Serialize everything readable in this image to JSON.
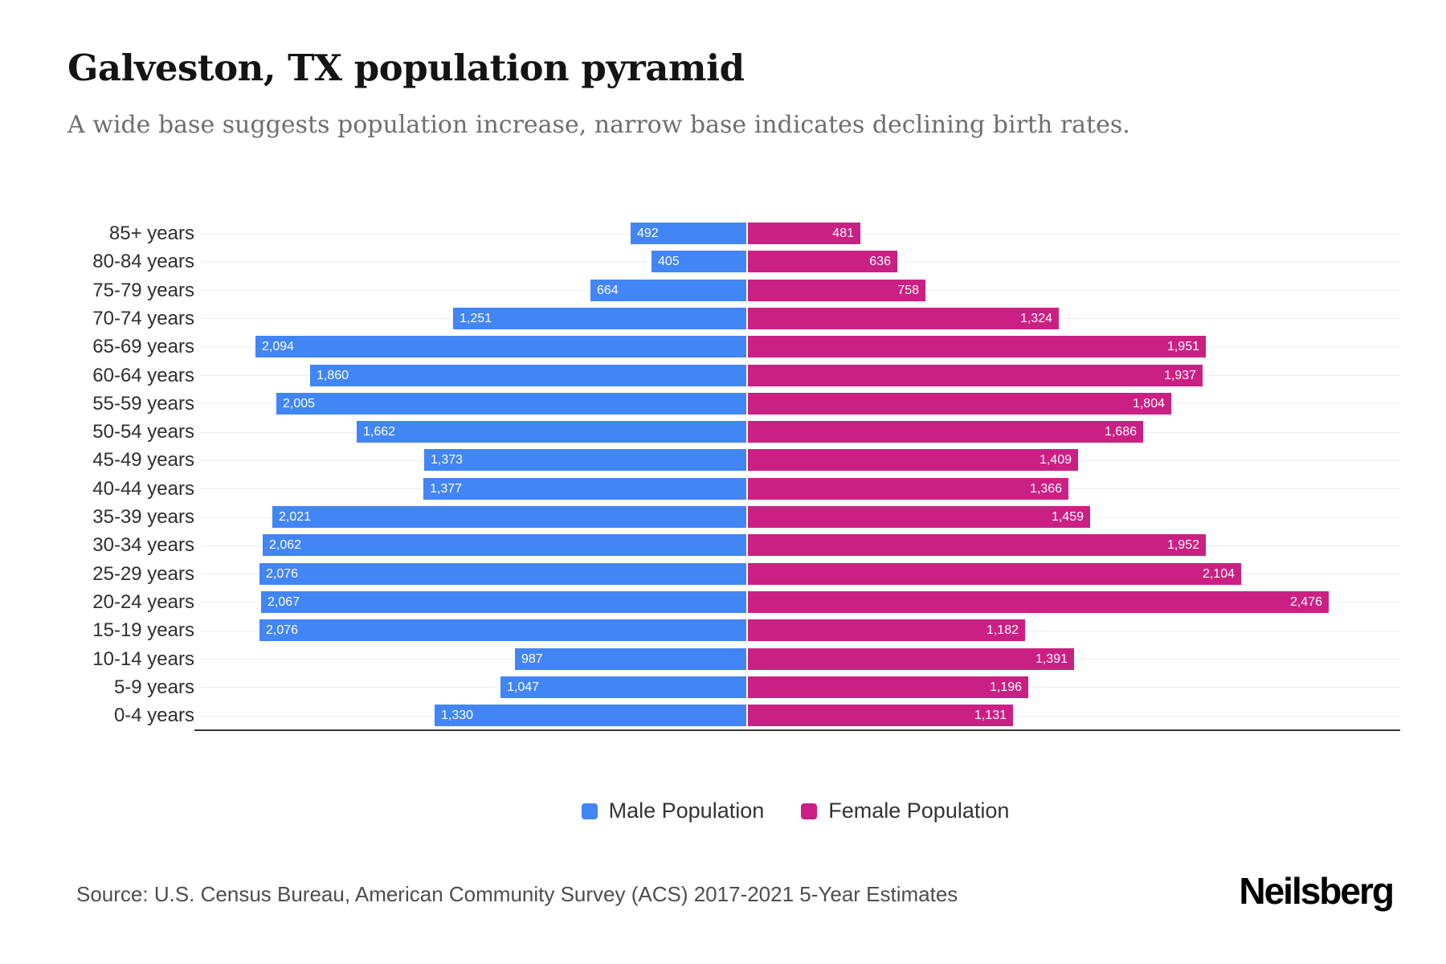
{
  "header": {
    "title": "Galveston, TX population pyramid",
    "subtitle": "A wide base suggests population increase, narrow base indicates declining birth rates."
  },
  "chart_data": {
    "type": "bar",
    "variant": "population-pyramid",
    "orientation": "horizontal",
    "categories": [
      "85+ years",
      "80-84 years",
      "75-79 years",
      "70-74 years",
      "65-69 years",
      "60-64 years",
      "55-59 years",
      "50-54 years",
      "45-49 years",
      "40-44 years",
      "35-39 years",
      "30-34 years",
      "25-29 years",
      "20-24 years",
      "15-19 years",
      "10-14 years",
      "5-9 years",
      "0-4 years"
    ],
    "series": [
      {
        "name": "Male Population",
        "side": "left",
        "color": "#4285F4",
        "values": [
          492,
          405,
          664,
          1251,
          2094,
          1860,
          2005,
          1662,
          1373,
          1377,
          2021,
          2062,
          2076,
          2067,
          2076,
          987,
          1047,
          1330
        ]
      },
      {
        "name": "Female Population",
        "side": "right",
        "color": "#CB2083",
        "values": [
          481,
          636,
          758,
          1324,
          1951,
          1937,
          1804,
          1686,
          1409,
          1366,
          1459,
          1952,
          2104,
          2476,
          1182,
          1391,
          1196,
          1131
        ]
      }
    ],
    "value_labels": "inside-outer-end",
    "xlim_each_side": [
      0,
      2600
    ],
    "grid": true,
    "legend_position": "bottom"
  },
  "footer": {
    "source": "Source: U.S. Census Bureau, American Community Survey (ACS) 2017-2021 5-Year Estimates",
    "brand": "Neilsberg"
  },
  "colors": {
    "male": "#4285F4",
    "female": "#CB2083",
    "gridline": "#ececec",
    "baseline": "#333333",
    "subtitle_text": "#6e6e6e"
  }
}
